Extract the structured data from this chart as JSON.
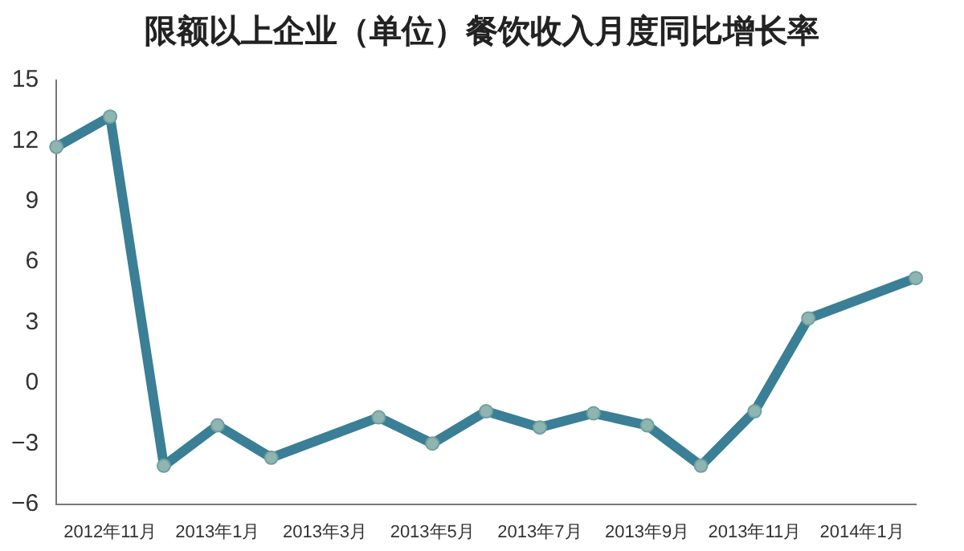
{
  "chart_data": {
    "type": "line",
    "title": "限额以上企业（单位）餐饮收入月度同比增长率",
    "categories": [
      null,
      "2012年11月",
      null,
      "2013年1月",
      null,
      "2013年3月",
      null,
      "2013年5月",
      null,
      "2013年7月",
      null,
      "2013年9月",
      null,
      "2013年11月",
      null,
      "2014年1月",
      null
    ],
    "series": [
      {
        "color": "#3a7f96",
        "values": [
          11.7,
          13.2,
          -4.1,
          -2.1,
          -3.7,
          null,
          -1.7,
          -3.0,
          -1.4,
          -2.2,
          -1.5,
          -2.1,
          -4.1,
          -1.4,
          3.2,
          null,
          5.2
        ]
      }
    ],
    "ylim": [
      -6,
      15
    ],
    "yticks": [
      -6,
      -3,
      0,
      3,
      6,
      9,
      12,
      15
    ],
    "grid": false,
    "legend": false,
    "marker": "circle",
    "line_style": "solid"
  }
}
